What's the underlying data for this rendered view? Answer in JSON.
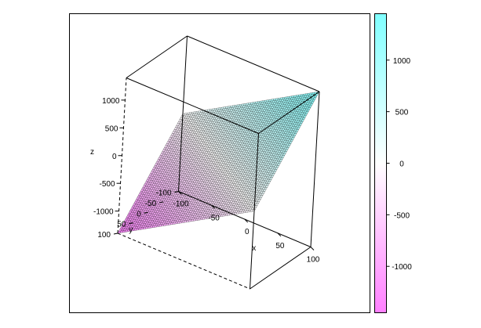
{
  "chart_data": {
    "type": "surface3d",
    "title": "",
    "xlabel": "x",
    "ylabel": "y",
    "zlabel": "z",
    "xlim": [
      -100,
      100
    ],
    "ylim": [
      -100,
      100
    ],
    "zlim": [
      -1400,
      1400
    ],
    "x_ticks": [
      -100,
      -50,
      0,
      50,
      100
    ],
    "y_ticks": [
      -100,
      -50,
      0,
      50,
      100
    ],
    "z_ticks": [
      -1000,
      -500,
      0,
      500,
      1000
    ],
    "surface": {
      "equation": "z = 7x - 7y",
      "grid_n": 61
    },
    "colorbar": {
      "ticks": [
        1000,
        500,
        0,
        -500,
        -1000
      ],
      "range": [
        -1450,
        1450
      ],
      "colors": {
        "low": "#ff80ff",
        "mid": "#ffffff",
        "high": "#80ffff"
      }
    },
    "colors": {
      "mesh": "#000000",
      "box": "#000000"
    }
  }
}
